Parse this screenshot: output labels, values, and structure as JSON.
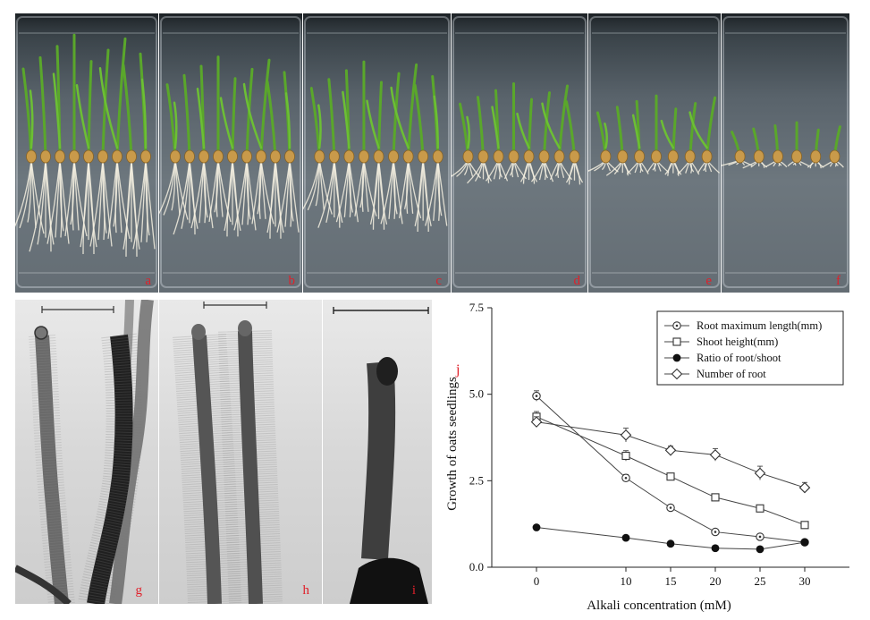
{
  "panels": {
    "a": "a",
    "b": "b",
    "c": "c",
    "d": "d",
    "e": "e",
    "f": "f",
    "g": "g",
    "h": "h",
    "i": "i",
    "j": "j"
  },
  "photo_settings": {
    "plants_per_tray": [
      9,
      9,
      9,
      8,
      7,
      6
    ],
    "shoot_height_rel": [
      1.0,
      0.82,
      0.78,
      0.6,
      0.5,
      0.28
    ],
    "root_length_rel": [
      1.0,
      0.82,
      0.75,
      0.28,
      0.2,
      0.12
    ]
  },
  "chart_data": {
    "type": "line",
    "xlabel": "Alkali concentration (mM)",
    "ylabel": "Growth of oats seedlings",
    "x_ticks": [
      0,
      10,
      15,
      20,
      25,
      30
    ],
    "y_ticks": [
      "0.0",
      "2.5",
      "5.0",
      "7.5"
    ],
    "ylim": [
      0,
      7.5
    ],
    "legend_position": "top-right",
    "series": [
      {
        "name": "Root maximum length(mm)",
        "marker": "circle-dot",
        "x": [
          0,
          10,
          15,
          20,
          25,
          30
        ],
        "y": [
          4.95,
          2.58,
          1.72,
          1.02,
          0.88,
          0.72
        ],
        "err": [
          0.15,
          0.1,
          0.08,
          0.06,
          0.05,
          0.05
        ]
      },
      {
        "name": "Shoot height(mm)",
        "marker": "square",
        "x": [
          0,
          10,
          15,
          20,
          25,
          30
        ],
        "y": [
          4.35,
          3.22,
          2.62,
          2.02,
          1.7,
          1.22
        ],
        "err": [
          0.15,
          0.15,
          0.08,
          0.1,
          0.07,
          0.07
        ]
      },
      {
        "name": "Ratio of root/shoot",
        "marker": "filled-circle",
        "x": [
          0,
          10,
          15,
          20,
          25,
          30
        ],
        "y": [
          1.15,
          0.85,
          0.68,
          0.55,
          0.52,
          0.72
        ],
        "err": [
          0,
          0,
          0,
          0,
          0,
          0
        ]
      },
      {
        "name": "Number of root",
        "marker": "diamond",
        "x": [
          0,
          10,
          15,
          20,
          25,
          30
        ],
        "y": [
          4.2,
          3.82,
          3.38,
          3.25,
          2.72,
          2.3
        ],
        "err": [
          0.15,
          0.2,
          0.12,
          0.18,
          0.2,
          0.15
        ]
      }
    ]
  }
}
